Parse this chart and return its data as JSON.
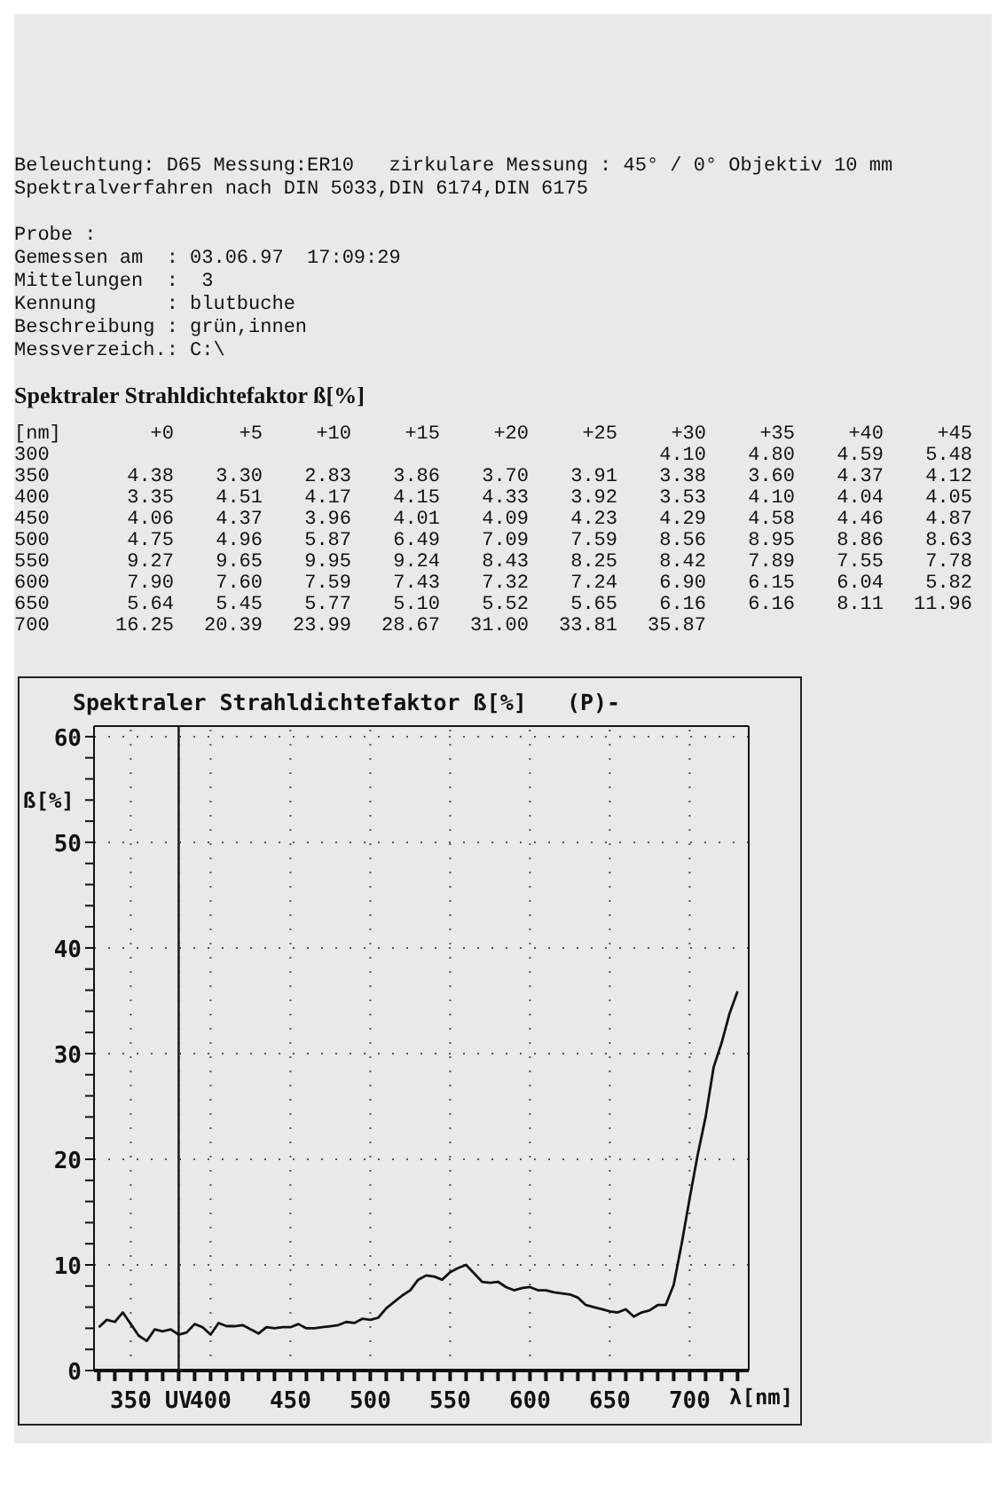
{
  "chart_data": [
    {
      "type": "heatmap",
      "title": "Spektraler Strahldichtefaktor ß[%]",
      "ylabel": "[nm]",
      "annotations": [
        "Beleuchtung: D65 Messung:ER10   zirkulare Messung : 45° / 0° Objektiv 10 mm",
        "Spektralverfahren nach DIN 5033,DIN 6174,DIN 6175",
        "Probe :",
        "Gemessen am  : 03.06.97  17:09:29",
        "Mittelungen  :  3",
        "Kennung      : blutbuche",
        "Beschreibung : grün,innen",
        "Messverzeich.: C:\\"
      ],
      "categories": [
        "+0",
        "+5",
        "+10",
        "+15",
        "+20",
        "+25",
        "+30",
        "+35",
        "+40",
        "+45"
      ],
      "y_categories": [
        "300",
        "350",
        "400",
        "450",
        "500",
        "550",
        "600",
        "650",
        "700"
      ],
      "cells": [
        [
          null,
          null,
          null,
          null,
          null,
          null,
          4.1,
          4.8,
          4.59,
          5.48
        ],
        [
          4.38,
          3.3,
          2.83,
          3.86,
          3.7,
          3.91,
          3.38,
          3.6,
          4.37,
          4.12
        ],
        [
          3.35,
          4.51,
          4.17,
          4.15,
          4.33,
          3.92,
          3.53,
          4.1,
          4.04,
          4.05
        ],
        [
          4.06,
          4.37,
          3.96,
          4.01,
          4.09,
          4.23,
          4.29,
          4.58,
          4.46,
          4.87
        ],
        [
          4.75,
          4.96,
          5.87,
          6.49,
          7.09,
          7.59,
          8.56,
          8.95,
          8.86,
          8.63
        ],
        [
          9.27,
          9.65,
          9.95,
          9.24,
          8.43,
          8.25,
          8.42,
          7.89,
          7.55,
          7.78
        ],
        [
          7.9,
          7.6,
          7.59,
          7.43,
          7.32,
          7.24,
          6.9,
          6.15,
          6.04,
          5.82
        ],
        [
          5.64,
          5.45,
          5.77,
          5.1,
          5.52,
          5.65,
          6.16,
          6.16,
          8.11,
          11.96
        ],
        [
          16.25,
          20.39,
          23.99,
          28.67,
          31,
          33.81,
          35.87,
          null,
          null,
          null
        ]
      ],
      "cell_labels": [
        [
          null,
          null,
          null,
          null,
          null,
          null,
          "4.10",
          "4.80",
          "4.59",
          "5.48"
        ],
        [
          "4.38",
          "3.30",
          "2.83",
          "3.86",
          "3.70",
          "3.91",
          "3.38",
          "3.60",
          "4.37",
          "4.12"
        ],
        [
          "3.35",
          "4.51",
          "4.17",
          "4.15",
          "4.33",
          "3.92",
          "3.53",
          "4.10",
          "4.04",
          "4.05"
        ],
        [
          "4.06",
          "4.37",
          "3.96",
          "4.01",
          "4.09",
          "4.23",
          "4.29",
          "4.58",
          "4.46",
          "4.87"
        ],
        [
          "4.75",
          "4.96",
          "5.87",
          "6.49",
          "7.09",
          "7.59",
          "8.56",
          "8.95",
          "8.86",
          "8.63"
        ],
        [
          "9.27",
          "9.65",
          "9.95",
          "9.24",
          "8.43",
          "8.25",
          "8.42",
          "7.89",
          "7.55",
          "7.78"
        ],
        [
          "7.90",
          "7.60",
          "7.59",
          "7.43",
          "7.32",
          "7.24",
          "6.90",
          "6.15",
          "6.04",
          "5.82"
        ],
        [
          "5.64",
          "5.45",
          "5.77",
          "5.10",
          "5.52",
          "5.65",
          "6.16",
          "6.16",
          "8.11",
          "11.96"
        ],
        [
          "16.25",
          "20.39",
          "23.99",
          "28.67",
          "31.00",
          "33.81",
          "35.87",
          null,
          null,
          null
        ]
      ]
    },
    {
      "type": "line",
      "title": "Spektraler Strahldichtefaktor ß[%]   (P)-",
      "xlabel": "λ[nm]",
      "ylabel": "ß[%]",
      "x": [
        330,
        335,
        340,
        345,
        350,
        355,
        360,
        365,
        370,
        375,
        380,
        385,
        390,
        395,
        400,
        405,
        410,
        415,
        420,
        425,
        430,
        435,
        440,
        445,
        450,
        455,
        460,
        465,
        470,
        475,
        480,
        485,
        490,
        495,
        500,
        505,
        510,
        515,
        520,
        525,
        530,
        535,
        540,
        545,
        550,
        555,
        560,
        565,
        570,
        575,
        580,
        585,
        590,
        595,
        600,
        605,
        610,
        615,
        620,
        625,
        630,
        635,
        640,
        645,
        650,
        655,
        660,
        665,
        670,
        675,
        680,
        685,
        690,
        695,
        700,
        705,
        710,
        715,
        720,
        725,
        730
      ],
      "series": [
        {
          "color": "#111111",
          "values": [
            4.1,
            4.8,
            4.6,
            5.5,
            4.4,
            3.3,
            2.8,
            3.9,
            3.7,
            3.9,
            3.4,
            3.6,
            4.4,
            4.1,
            3.4,
            4.5,
            4.2,
            4.2,
            4.3,
            3.9,
            3.5,
            4.1,
            4.0,
            4.1,
            4.1,
            4.4,
            4.0,
            4.0,
            4.1,
            4.2,
            4.3,
            4.6,
            4.5,
            4.9,
            4.8,
            5.0,
            5.9,
            6.5,
            7.1,
            7.6,
            8.6,
            9.0,
            8.9,
            8.6,
            9.3,
            9.7,
            10.0,
            9.2,
            8.4,
            8.3,
            8.4,
            7.9,
            7.6,
            7.8,
            7.9,
            7.6,
            7.6,
            7.4,
            7.3,
            7.2,
            6.9,
            6.2,
            6.0,
            5.8,
            5.6,
            5.5,
            5.8,
            5.1,
            5.5,
            5.7,
            6.2,
            6.2,
            8.1,
            12.0,
            16.3,
            20.4,
            24.0,
            28.7,
            31.0,
            33.8,
            35.9
          ]
        }
      ],
      "xlim": [
        327,
        737
      ],
      "xticks": [
        {
          "value": 330,
          "label": null
        },
        {
          "value": 340,
          "label": null
        },
        350,
        {
          "value": 360,
          "label": null
        },
        {
          "value": 370,
          "label": null
        },
        {
          "value": 380,
          "label": "UV"
        },
        {
          "value": 390,
          "label": null
        },
        400,
        {
          "value": 410,
          "label": null
        },
        {
          "value": 420,
          "label": null
        },
        {
          "value": 430,
          "label": null
        },
        {
          "value": 440,
          "label": null
        },
        450,
        {
          "value": 460,
          "label": null
        },
        {
          "value": 470,
          "label": null
        },
        {
          "value": 480,
          "label": null
        },
        {
          "value": 490,
          "label": null
        },
        500,
        {
          "value": 510,
          "label": null
        },
        {
          "value": 520,
          "label": null
        },
        {
          "value": 530,
          "label": null
        },
        {
          "value": 540,
          "label": null
        },
        550,
        {
          "value": 560,
          "label": null
        },
        {
          "value": 570,
          "label": null
        },
        {
          "value": 580,
          "label": null
        },
        {
          "value": 590,
          "label": null
        },
        600,
        {
          "value": 610,
          "label": null
        },
        {
          "value": 620,
          "label": null
        },
        {
          "value": 630,
          "label": null
        },
        {
          "value": 640,
          "label": null
        },
        650,
        {
          "value": 660,
          "label": null
        },
        {
          "value": 670,
          "label": null
        },
        {
          "value": 680,
          "label": null
        },
        {
          "value": 690,
          "label": null
        },
        700,
        {
          "value": 710,
          "label": null
        },
        {
          "value": 720,
          "label": null
        },
        {
          "value": 730,
          "label": null
        }
      ],
      "ylim": [
        0,
        61
      ],
      "yticks": [
        0,
        {
          "value": 2,
          "label": null
        },
        {
          "value": 4,
          "label": null
        },
        {
          "value": 6,
          "label": null
        },
        {
          "value": 8,
          "label": null
        },
        10,
        {
          "value": 12,
          "label": null
        },
        {
          "value": 14,
          "label": null
        },
        {
          "value": 16,
          "label": null
        },
        {
          "value": 18,
          "label": null
        },
        20,
        {
          "value": 22,
          "label": null
        },
        {
          "value": 24,
          "label": null
        },
        {
          "value": 26,
          "label": null
        },
        {
          "value": 28,
          "label": null
        },
        30,
        {
          "value": 32,
          "label": null
        },
        {
          "value": 34,
          "label": null
        },
        {
          "value": 36,
          "label": null
        },
        {
          "value": 38,
          "label": null
        },
        40,
        {
          "value": 42,
          "label": null
        },
        {
          "value": 44,
          "label": null
        },
        {
          "value": 46,
          "label": null
        },
        {
          "value": 48,
          "label": null
        },
        50,
        {
          "value": 52,
          "label": null
        },
        {
          "value": 54,
          "label": null
        },
        {
          "value": 56,
          "label": null
        },
        {
          "value": 58,
          "label": null
        },
        60
      ],
      "ref_lines": [
        {
          "axis": "x",
          "value": 380,
          "color": "#222222"
        }
      ],
      "grid": true,
      "marker": "none",
      "line_style": "solid"
    }
  ]
}
